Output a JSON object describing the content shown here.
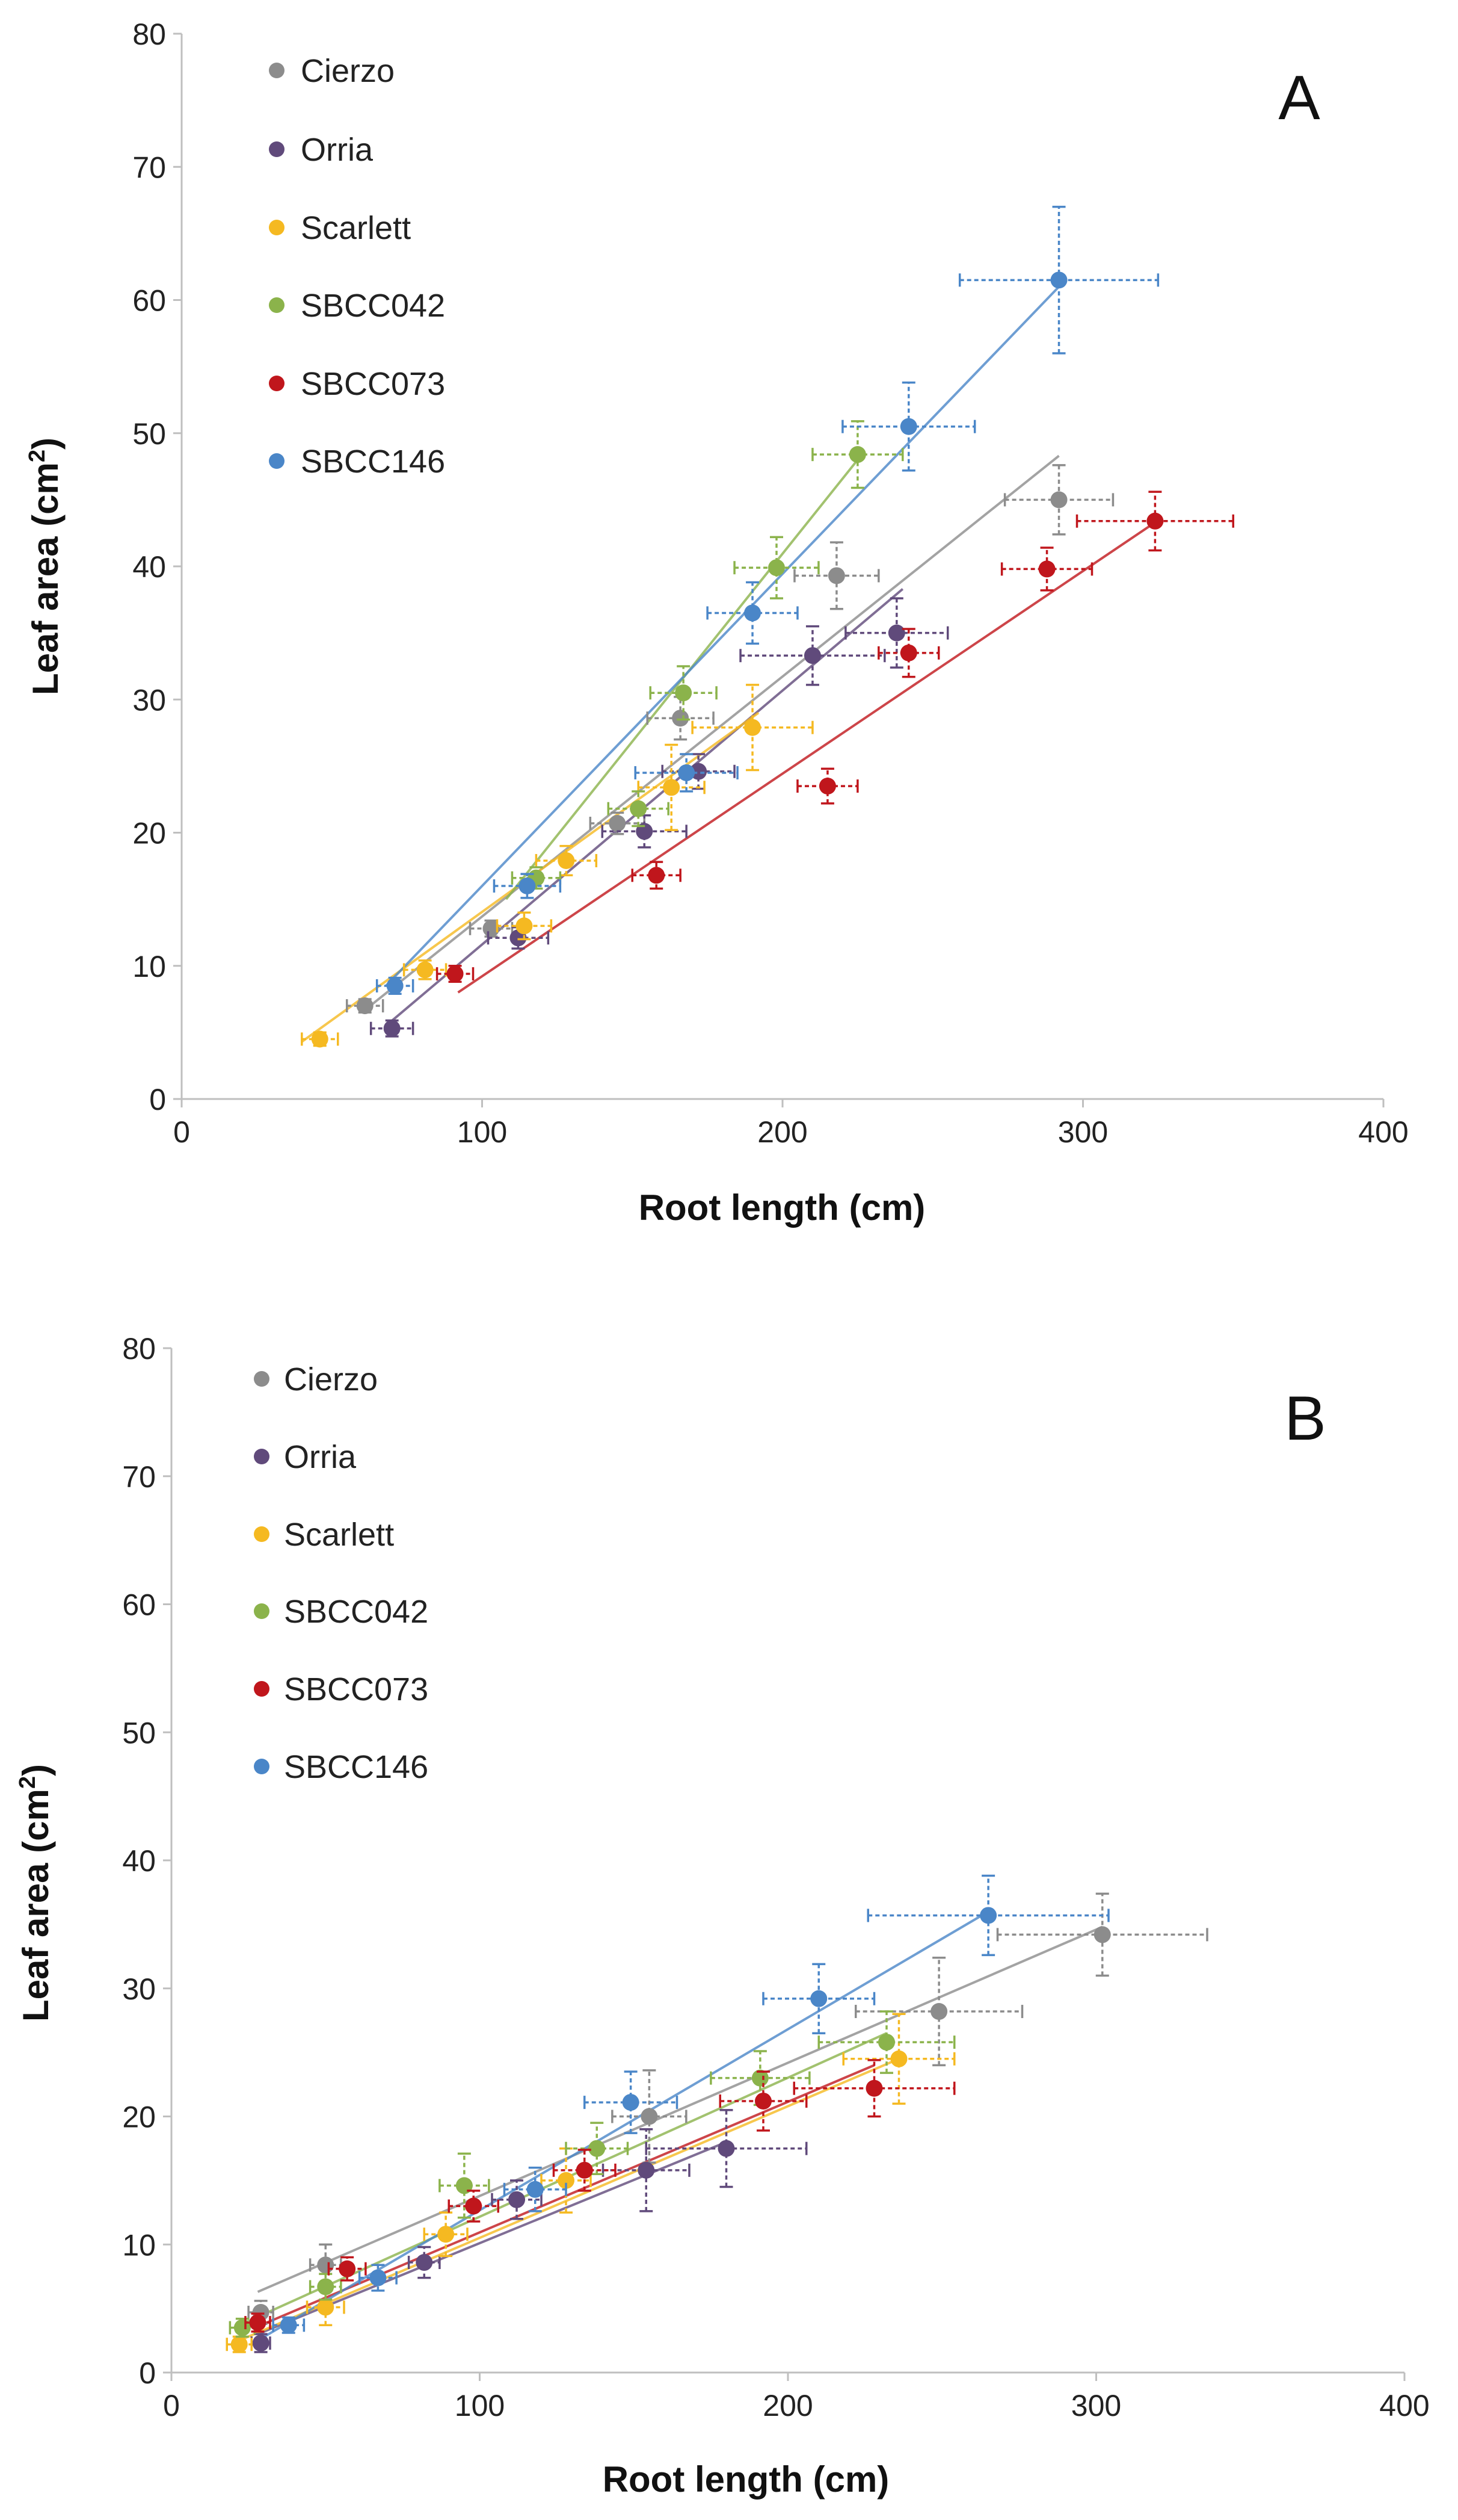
{
  "chart_data": [
    {
      "type": "scatter",
      "panel_label": "A",
      "xlabel": "Root length (cm)",
      "ylabel_main": "Leaf area (cm",
      "ylabel_sup": "2",
      "ylabel_close": ")",
      "xlim": [
        0,
        400
      ],
      "ylim": [
        0,
        80
      ],
      "xticks": [
        0,
        100,
        200,
        300,
        400
      ],
      "yticks": [
        0,
        10,
        20,
        30,
        40,
        50,
        60,
        70,
        80
      ],
      "xtick_labels": [
        "0",
        "100",
        "200",
        "300",
        "400"
      ],
      "ytick_labels": [
        "0",
        "10",
        "20",
        "30",
        "40",
        "50",
        "60",
        "70",
        "80"
      ],
      "legend_position": "top-left",
      "series": [
        {
          "name": "Cierzo",
          "color": "#8c8c8c",
          "trend": [
            [
              60,
              6.5
            ],
            [
              292,
              48.3
            ]
          ],
          "points": [
            {
              "x": 61,
              "y": 7.0,
              "xerr": 6,
              "yerr": 0.5
            },
            {
              "x": 103,
              "y": 12.8,
              "xerr": 7,
              "yerr": 0.6
            },
            {
              "x": 145,
              "y": 20.7,
              "xerr": 9,
              "yerr": 0.8
            },
            {
              "x": 166,
              "y": 28.6,
              "xerr": 11,
              "yerr": 1.6
            },
            {
              "x": 218,
              "y": 39.3,
              "xerr": 14,
              "yerr": 2.5
            },
            {
              "x": 292,
              "y": 45.0,
              "xerr": 18,
              "yerr": 2.6
            }
          ]
        },
        {
          "name": "Orria",
          "color": "#604a7b",
          "trend": [
            [
              68,
              5.5
            ],
            [
              240,
              38.3
            ]
          ],
          "points": [
            {
              "x": 70,
              "y": 5.3,
              "xerr": 7,
              "yerr": 0.6
            },
            {
              "x": 112,
              "y": 12.1,
              "xerr": 10,
              "yerr": 0.8
            },
            {
              "x": 154,
              "y": 20.1,
              "xerr": 14,
              "yerr": 1.2
            },
            {
              "x": 172,
              "y": 24.6,
              "xerr": 12,
              "yerr": 1.3
            },
            {
              "x": 210,
              "y": 33.3,
              "xerr": 24,
              "yerr": 2.2
            },
            {
              "x": 238,
              "y": 35.0,
              "xerr": 17,
              "yerr": 2.6
            }
          ]
        },
        {
          "name": "Scarlett",
          "color": "#f5b921",
          "trend": [
            [
              40,
              4.3
            ],
            [
              192,
              29.0
            ]
          ],
          "points": [
            {
              "x": 46,
              "y": 4.5,
              "xerr": 6,
              "yerr": 0.5
            },
            {
              "x": 81,
              "y": 9.7,
              "xerr": 7,
              "yerr": 0.7
            },
            {
              "x": 114,
              "y": 13.0,
              "xerr": 9,
              "yerr": 1.0
            },
            {
              "x": 128,
              "y": 17.9,
              "xerr": 10,
              "yerr": 1.1
            },
            {
              "x": 163,
              "y": 23.4,
              "xerr": 11,
              "yerr": 3.2
            },
            {
              "x": 190,
              "y": 27.9,
              "xerr": 20,
              "yerr": 3.2
            }
          ]
        },
        {
          "name": "SBCC042",
          "color": "#8bb34b",
          "trend": [
            [
              108,
              15.0
            ],
            [
              225,
              48.0
            ]
          ],
          "points": [
            {
              "x": 118,
              "y": 16.6,
              "xerr": 8,
              "yerr": 0.8
            },
            {
              "x": 152,
              "y": 21.8,
              "xerr": 10,
              "yerr": 1.3
            },
            {
              "x": 167,
              "y": 30.5,
              "xerr": 11,
              "yerr": 2.0
            },
            {
              "x": 198,
              "y": 39.9,
              "xerr": 14,
              "yerr": 2.3
            },
            {
              "x": 225,
              "y": 48.4,
              "xerr": 15,
              "yerr": 2.5
            }
          ]
        },
        {
          "name": "SBCC073",
          "color": "#c0161c",
          "trend": [
            [
              92,
              8.0
            ],
            [
              324,
              43.3
            ]
          ],
          "points": [
            {
              "x": 91,
              "y": 9.4,
              "xerr": 6,
              "yerr": 0.6
            },
            {
              "x": 158,
              "y": 16.8,
              "xerr": 8,
              "yerr": 1.0
            },
            {
              "x": 215,
              "y": 23.5,
              "xerr": 10,
              "yerr": 1.3
            },
            {
              "x": 242,
              "y": 33.5,
              "xerr": 10,
              "yerr": 1.8
            },
            {
              "x": 288,
              "y": 39.8,
              "xerr": 15,
              "yerr": 1.6
            },
            {
              "x": 324,
              "y": 43.4,
              "xerr": 26,
              "yerr": 2.2
            }
          ]
        },
        {
          "name": "SBCC146",
          "color": "#4a86c8",
          "trend": [
            [
              68,
              8.5
            ],
            [
              292,
              61.0
            ]
          ],
          "points": [
            {
              "x": 71,
              "y": 8.5,
              "xerr": 6,
              "yerr": 0.6
            },
            {
              "x": 115,
              "y": 16.0,
              "xerr": 11,
              "yerr": 0.9
            },
            {
              "x": 168,
              "y": 24.5,
              "xerr": 17,
              "yerr": 1.4
            },
            {
              "x": 190,
              "y": 36.5,
              "xerr": 15,
              "yerr": 2.3
            },
            {
              "x": 242,
              "y": 50.5,
              "xerr": 22,
              "yerr": 3.3
            },
            {
              "x": 292,
              "y": 61.5,
              "xerr": 33,
              "yerr": 5.5
            }
          ]
        }
      ]
    },
    {
      "type": "scatter",
      "panel_label": "B",
      "xlabel": "Root length (cm)",
      "ylabel_main": "Leaf area (cm",
      "ylabel_sup": "2",
      "ylabel_close": ")",
      "xlim": [
        0,
        400
      ],
      "ylim": [
        0,
        80
      ],
      "xticks": [
        0,
        100,
        200,
        300,
        400
      ],
      "yticks": [
        0,
        10,
        20,
        30,
        40,
        50,
        60,
        70,
        80
      ],
      "xtick_labels": [
        "0",
        "100",
        "200",
        "300",
        "400"
      ],
      "ytick_labels": [
        "0",
        "10",
        "20",
        "30",
        "40",
        "50",
        "60",
        "70",
        "80"
      ],
      "legend_position": "top-left",
      "series": [
        {
          "name": "Cierzo",
          "color": "#8c8c8c",
          "trend": [
            [
              28,
              6.3
            ],
            [
              302,
              34.8
            ]
          ],
          "points": [
            {
              "x": 29,
              "y": 4.7,
              "xerr": 4,
              "yerr": 0.9
            },
            {
              "x": 50,
              "y": 8.4,
              "xerr": 5,
              "yerr": 1.6
            },
            {
              "x": 155,
              "y": 20.0,
              "xerr": 12,
              "yerr": 3.6
            },
            {
              "x": 249,
              "y": 28.2,
              "xerr": 27,
              "yerr": 4.2
            },
            {
              "x": 302,
              "y": 34.2,
              "xerr": 34,
              "yerr": 3.2
            }
          ]
        },
        {
          "name": "Orria",
          "color": "#604a7b",
          "trend": [
            [
              28,
              3.0
            ],
            [
              180,
              18.0
            ]
          ],
          "points": [
            {
              "x": 29,
              "y": 2.3,
              "xerr": 3,
              "yerr": 0.7
            },
            {
              "x": 82,
              "y": 8.6,
              "xerr": 5,
              "yerr": 1.2
            },
            {
              "x": 112,
              "y": 13.5,
              "xerr": 8,
              "yerr": 1.5
            },
            {
              "x": 154,
              "y": 15.8,
              "xerr": 14,
              "yerr": 3.2
            },
            {
              "x": 180,
              "y": 17.5,
              "xerr": 26,
              "yerr": 3.0
            }
          ]
        },
        {
          "name": "Scarlett",
          "color": "#f5b921",
          "trend": [
            [
              22,
              2.5
            ],
            [
              236,
              24.5
            ]
          ],
          "points": [
            {
              "x": 22,
              "y": 2.2,
              "xerr": 4,
              "yerr": 0.6
            },
            {
              "x": 50,
              "y": 5.1,
              "xerr": 6,
              "yerr": 1.4
            },
            {
              "x": 89,
              "y": 10.8,
              "xerr": 7,
              "yerr": 1.7
            },
            {
              "x": 128,
              "y": 15.0,
              "xerr": 8,
              "yerr": 2.5
            },
            {
              "x": 236,
              "y": 24.5,
              "xerr": 18,
              "yerr": 3.5
            }
          ]
        },
        {
          "name": "SBCC042",
          "color": "#8bb34b",
          "trend": [
            [
              22,
              3.7
            ],
            [
              232,
              26.5
            ]
          ],
          "points": [
            {
              "x": 23,
              "y": 3.5,
              "xerr": 4,
              "yerr": 0.7
            },
            {
              "x": 50,
              "y": 6.7,
              "xerr": 5,
              "yerr": 1.0
            },
            {
              "x": 95,
              "y": 14.6,
              "xerr": 8,
              "yerr": 2.5
            },
            {
              "x": 138,
              "y": 17.5,
              "xerr": 10,
              "yerr": 2.0
            },
            {
              "x": 191,
              "y": 23.0,
              "xerr": 16,
              "yerr": 2.1
            },
            {
              "x": 232,
              "y": 25.8,
              "xerr": 22,
              "yerr": 2.4
            }
          ]
        },
        {
          "name": "SBCC073",
          "color": "#c0161c",
          "trend": [
            [
              27,
              3.5
            ],
            [
              228,
              24.0
            ]
          ],
          "points": [
            {
              "x": 28,
              "y": 3.9,
              "xerr": 4,
              "yerr": 0.7
            },
            {
              "x": 57,
              "y": 8.1,
              "xerr": 6,
              "yerr": 0.9
            },
            {
              "x": 98,
              "y": 13.0,
              "xerr": 8,
              "yerr": 1.2
            },
            {
              "x": 134,
              "y": 15.8,
              "xerr": 10,
              "yerr": 1.6
            },
            {
              "x": 192,
              "y": 21.2,
              "xerr": 14,
              "yerr": 2.3
            },
            {
              "x": 228,
              "y": 22.2,
              "xerr": 26,
              "yerr": 2.2
            }
          ]
        },
        {
          "name": "SBCC146",
          "color": "#4a86c8",
          "trend": [
            [
              28,
              2.5
            ],
            [
              265,
              36.0
            ]
          ],
          "points": [
            {
              "x": 38,
              "y": 3.7,
              "xerr": 5,
              "yerr": 0.6
            },
            {
              "x": 67,
              "y": 7.4,
              "xerr": 6,
              "yerr": 1.0
            },
            {
              "x": 118,
              "y": 14.3,
              "xerr": 10,
              "yerr": 1.7
            },
            {
              "x": 149,
              "y": 21.1,
              "xerr": 15,
              "yerr": 2.4
            },
            {
              "x": 210,
              "y": 29.2,
              "xerr": 18,
              "yerr": 2.7
            },
            {
              "x": 265,
              "y": 35.7,
              "xerr": 39,
              "yerr": 3.1
            }
          ]
        }
      ]
    }
  ]
}
